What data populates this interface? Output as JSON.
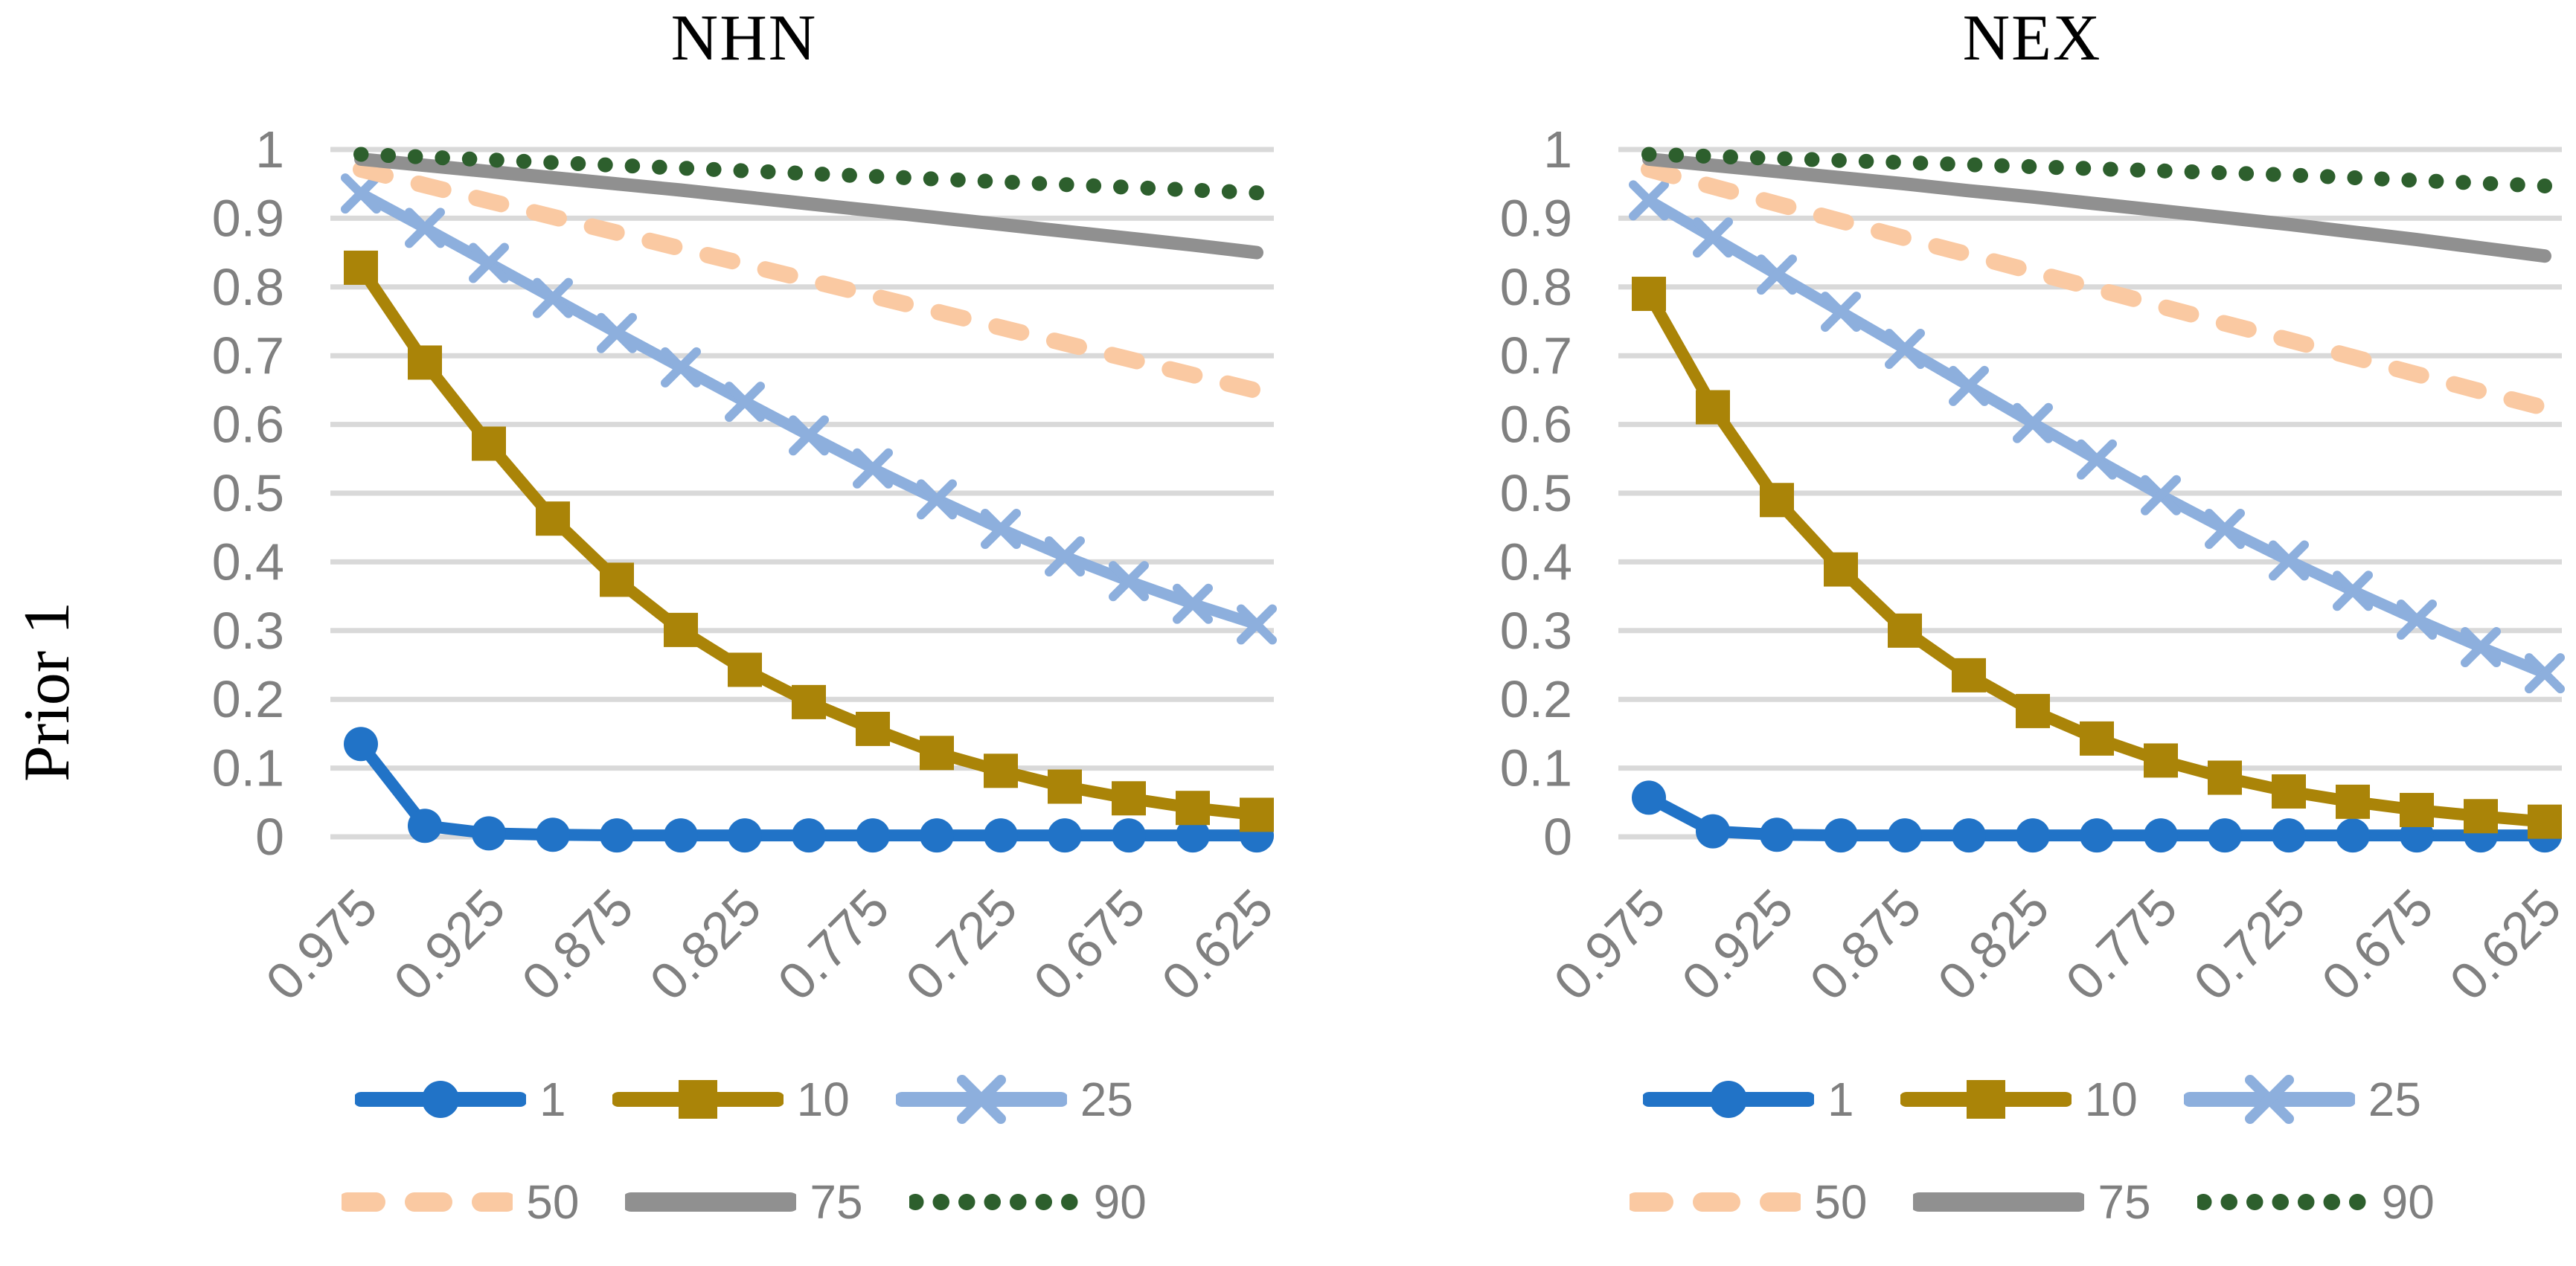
{
  "ylabel": "Prior 1",
  "styles": {
    "grid_color": "#D9D9D9",
    "tick_color": "#808080",
    "legend_text_color": "#7f7f7f",
    "title_color": "#000000",
    "background": "#ffffff"
  },
  "chart_data": [
    {
      "type": "line",
      "title": "NHN",
      "x": [
        0.975,
        0.95,
        0.925,
        0.9,
        0.875,
        0.85,
        0.825,
        0.8,
        0.775,
        0.75,
        0.725,
        0.7,
        0.675,
        0.65,
        0.625
      ],
      "x_tick_labels": [
        "0.975",
        "0.925",
        "0.875",
        "0.825",
        "0.775",
        "0.725",
        "0.675",
        "0.625"
      ],
      "y_tick_labels": [
        "0",
        "0.1",
        "0.2",
        "0.3",
        "0.4",
        "0.5",
        "0.6",
        "0.7",
        "0.8",
        "0.9",
        "1"
      ],
      "ylim": [
        0,
        1
      ],
      "grid": "horizontal",
      "legend_position": "bottom",
      "legend_rows": [
        [
          "1",
          "10",
          "25"
        ],
        [
          "50",
          "75",
          "90"
        ]
      ],
      "series": [
        {
          "name": "1",
          "color": "#2173C7",
          "marker": "circle",
          "line": "solid",
          "values": [
            0.135,
            0.016,
            0.005,
            0.003,
            0.002,
            0.002,
            0.002,
            0.002,
            0.002,
            0.002,
            0.002,
            0.002,
            0.002,
            0.002,
            0.002
          ]
        },
        {
          "name": "10",
          "color": "#AA8408",
          "marker": "square",
          "line": "solid",
          "values": [
            0.828,
            0.69,
            0.572,
            0.463,
            0.374,
            0.301,
            0.243,
            0.196,
            0.157,
            0.122,
            0.096,
            0.073,
            0.056,
            0.042,
            0.032
          ]
        },
        {
          "name": "25",
          "color": "#8DAFDD",
          "marker": "x",
          "line": "solid",
          "values": [
            0.936,
            0.886,
            0.835,
            0.784,
            0.733,
            0.683,
            0.633,
            0.584,
            0.536,
            0.491,
            0.448,
            0.408,
            0.372,
            0.339,
            0.309
          ]
        },
        {
          "name": "50",
          "color": "#FAC9A2",
          "marker": "none",
          "line": "dashed",
          "values": [
            0.971,
            0.948,
            0.925,
            0.902,
            0.879,
            0.856,
            0.833,
            0.81,
            0.787,
            0.764,
            0.741,
            0.718,
            0.695,
            0.672,
            0.649
          ]
        },
        {
          "name": "75",
          "color": "#909090",
          "marker": "none",
          "line": "solid",
          "values": [
            0.986,
            0.977,
            0.968,
            0.959,
            0.95,
            0.941,
            0.931,
            0.921,
            0.911,
            0.901,
            0.891,
            0.881,
            0.871,
            0.861,
            0.85
          ]
        },
        {
          "name": "90",
          "color": "#2D5F2D",
          "marker": "none",
          "line": "dotted",
          "values": [
            0.993,
            0.989,
            0.985,
            0.981,
            0.977,
            0.973,
            0.969,
            0.965,
            0.961,
            0.957,
            0.953,
            0.949,
            0.945,
            0.941,
            0.937
          ]
        }
      ]
    },
    {
      "type": "line",
      "title": "NEX",
      "x": [
        0.975,
        0.95,
        0.925,
        0.9,
        0.875,
        0.85,
        0.825,
        0.8,
        0.775,
        0.75,
        0.725,
        0.7,
        0.675,
        0.65,
        0.625
      ],
      "x_tick_labels": [
        "0.975",
        "0.925",
        "0.875",
        "0.825",
        "0.775",
        "0.725",
        "0.675",
        "0.625"
      ],
      "y_tick_labels": [
        "0",
        "0.1",
        "0.2",
        "0.3",
        "0.4",
        "0.5",
        "0.6",
        "0.7",
        "0.8",
        "0.9",
        "1"
      ],
      "ylim": [
        0,
        1
      ],
      "grid": "horizontal",
      "legend_position": "bottom",
      "legend_rows": [
        [
          "1",
          "10",
          "25"
        ],
        [
          "50",
          "75",
          "90"
        ]
      ],
      "series": [
        {
          "name": "1",
          "color": "#2173C7",
          "marker": "circle",
          "line": "solid",
          "values": [
            0.057,
            0.008,
            0.003,
            0.002,
            0.002,
            0.002,
            0.002,
            0.002,
            0.002,
            0.002,
            0.002,
            0.002,
            0.002,
            0.002,
            0.002
          ]
        },
        {
          "name": "10",
          "color": "#AA8408",
          "marker": "square",
          "line": "solid",
          "values": [
            0.79,
            0.625,
            0.49,
            0.389,
            0.3,
            0.235,
            0.183,
            0.143,
            0.111,
            0.086,
            0.066,
            0.051,
            0.039,
            0.03,
            0.022
          ]
        },
        {
          "name": "25",
          "color": "#8DAFDD",
          "marker": "x",
          "line": "solid",
          "values": [
            0.926,
            0.872,
            0.818,
            0.764,
            0.71,
            0.656,
            0.602,
            0.549,
            0.497,
            0.448,
            0.402,
            0.358,
            0.316,
            0.276,
            0.238
          ]
        },
        {
          "name": "50",
          "color": "#FAC9A2",
          "marker": "none",
          "line": "dashed",
          "values": [
            0.971,
            0.946,
            0.921,
            0.896,
            0.871,
            0.847,
            0.822,
            0.797,
            0.772,
            0.747,
            0.723,
            0.698,
            0.673,
            0.648,
            0.624
          ]
        },
        {
          "name": "75",
          "color": "#909090",
          "marker": "none",
          "line": "solid",
          "values": [
            0.986,
            0.977,
            0.968,
            0.959,
            0.95,
            0.94,
            0.931,
            0.921,
            0.911,
            0.901,
            0.891,
            0.88,
            0.869,
            0.857,
            0.845
          ]
        },
        {
          "name": "90",
          "color": "#2D5F2D",
          "marker": "none",
          "line": "dotted",
          "values": [
            0.993,
            0.99,
            0.987,
            0.984,
            0.981,
            0.978,
            0.975,
            0.972,
            0.969,
            0.966,
            0.963,
            0.959,
            0.955,
            0.951,
            0.947
          ]
        }
      ]
    }
  ]
}
